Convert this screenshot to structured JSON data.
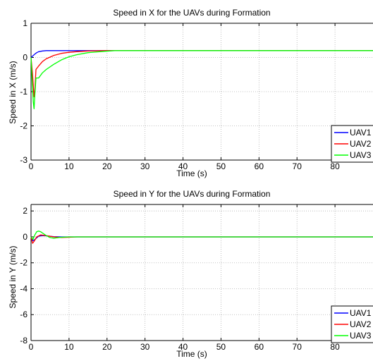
{
  "chart_data": [
    {
      "type": "line",
      "title": "Speed in X for the UAVs during Formation",
      "xlabel": "Time (s)",
      "ylabel": "Speed in X (m/s)",
      "xlim": [
        0,
        90
      ],
      "ylim": [
        -3,
        1
      ],
      "xticks": [
        0,
        10,
        20,
        30,
        40,
        50,
        60,
        70,
        80
      ],
      "yticks": [
        -3,
        -2,
        -1,
        0,
        1
      ],
      "grid": true,
      "legend": "bottom-right",
      "series": [
        {
          "name": "UAV1",
          "color": "#0000ff",
          "x": [
            0,
            0.5,
            1,
            1.5,
            2,
            3,
            4,
            5,
            6,
            8,
            10,
            90
          ],
          "y": [
            0.0,
            0.05,
            0.1,
            0.14,
            0.17,
            0.19,
            0.2,
            0.2,
            0.2,
            0.2,
            0.2,
            0.2
          ]
        },
        {
          "name": "UAV2",
          "color": "#ff0000",
          "x": [
            0,
            0.4,
            0.8,
            1.0,
            1.3,
            2,
            3,
            4,
            6,
            8,
            10,
            12,
            15,
            20,
            90
          ],
          "y": [
            0.0,
            -0.5,
            -1.15,
            -0.95,
            -0.35,
            -0.25,
            -0.12,
            -0.04,
            0.06,
            0.12,
            0.15,
            0.17,
            0.19,
            0.2,
            0.2
          ]
        },
        {
          "name": "UAV3",
          "color": "#00ff00",
          "x": [
            0,
            0.3,
            0.6,
            0.8,
            1.0,
            1.3,
            2,
            3,
            4,
            6,
            8,
            10,
            12,
            15,
            18,
            22,
            90
          ],
          "y": [
            0.0,
            -0.7,
            -1.3,
            -1.5,
            -1.1,
            -0.6,
            -0.6,
            -0.45,
            -0.35,
            -0.2,
            -0.07,
            0.02,
            0.08,
            0.14,
            0.17,
            0.2,
            0.2
          ]
        }
      ]
    },
    {
      "type": "line",
      "title": "Speed in Y for the UAVs during Formation",
      "xlabel": "Time (s)",
      "ylabel": "Speed in Y (m/s)",
      "xlim": [
        0,
        90
      ],
      "ylim": [
        -8,
        2.5
      ],
      "xticks": [
        0,
        10,
        20,
        30,
        40,
        50,
        60,
        70,
        80
      ],
      "yticks": [
        -8,
        -6,
        -4,
        -2,
        0,
        2
      ],
      "grid": true,
      "legend": "bottom-right",
      "series": [
        {
          "name": "UAV1",
          "color": "#0000ff",
          "x": [
            0,
            0.5,
            1,
            2,
            3,
            4,
            6,
            8,
            10,
            90
          ],
          "y": [
            0,
            -0.3,
            -0.2,
            0.05,
            0.1,
            0.08,
            0.02,
            0,
            0,
            0
          ]
        },
        {
          "name": "UAV2",
          "color": "#ff0000",
          "x": [
            0,
            0.4,
            0.8,
            1.5,
            2.5,
            4,
            6,
            8,
            10,
            12,
            15,
            90
          ],
          "y": [
            0,
            -0.5,
            -0.35,
            0.0,
            0.15,
            0.1,
            0.0,
            -0.05,
            -0.03,
            0,
            0,
            0
          ]
        },
        {
          "name": "UAV3",
          "color": "#00ff00",
          "x": [
            0,
            0.5,
            1,
            1.5,
            2,
            2.5,
            3,
            4,
            5,
            6,
            8,
            10,
            90
          ],
          "y": [
            0,
            -0.2,
            0.15,
            0.4,
            0.45,
            0.4,
            0.3,
            0.1,
            -0.05,
            -0.1,
            -0.03,
            0,
            0
          ]
        }
      ]
    }
  ]
}
